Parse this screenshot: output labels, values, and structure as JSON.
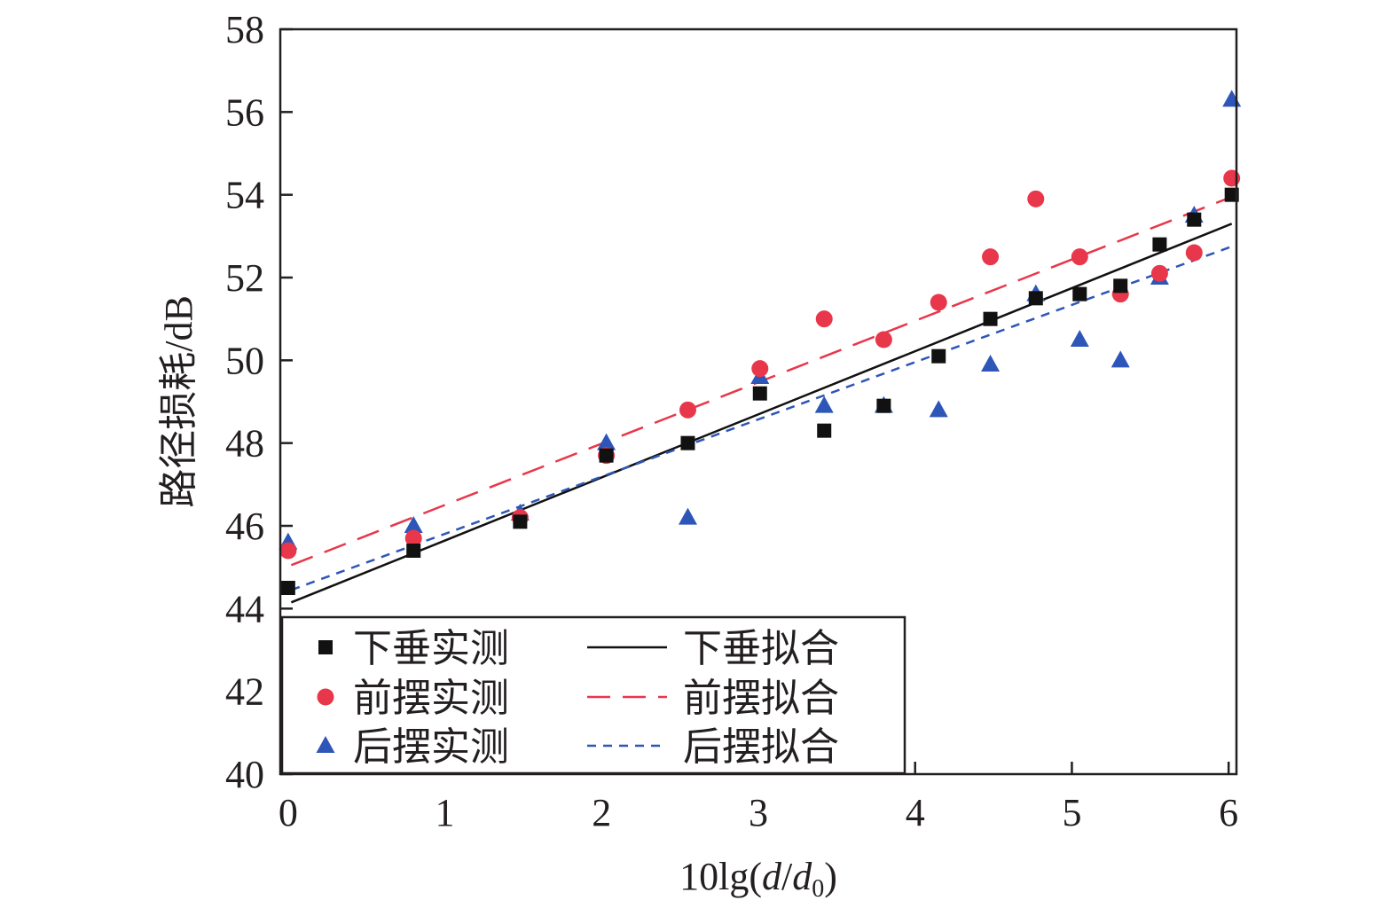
{
  "chart_data": {
    "type": "scatter",
    "xlabel": "10lg(d/d0)",
    "xlabel_parts": {
      "prefix": "10lg(",
      "var_d": "d",
      "slash": "/",
      "var_d0": "d",
      "sub0": "0",
      "suffix": ")"
    },
    "ylabel": "路径损耗/dB",
    "xlim": [
      -0.05,
      6.05
    ],
    "ylim": [
      40,
      58
    ],
    "xticks": [
      0,
      1,
      2,
      3,
      4,
      5,
      6
    ],
    "yticks": [
      40,
      42,
      44,
      46,
      48,
      50,
      52,
      54,
      56,
      58
    ],
    "grid": false,
    "legend_position": "bottom-left",
    "series": [
      {
        "name": "下垂实测",
        "kind": "scatter",
        "marker": "square",
        "color": "#111111",
        "points": [
          [
            0,
            44.5
          ],
          [
            0.8,
            45.4
          ],
          [
            1.48,
            46.1
          ],
          [
            2.03,
            47.7
          ],
          [
            2.55,
            48.0
          ],
          [
            3.01,
            49.2
          ],
          [
            3.42,
            48.3
          ],
          [
            3.8,
            48.9
          ],
          [
            4.15,
            50.1
          ],
          [
            4.48,
            51.0
          ],
          [
            4.77,
            51.5
          ],
          [
            5.05,
            51.6
          ],
          [
            5.31,
            51.8
          ],
          [
            5.56,
            52.8
          ],
          [
            5.78,
            53.4
          ],
          [
            6.02,
            54.0
          ]
        ]
      },
      {
        "name": "前摆实测",
        "kind": "scatter",
        "marker": "circle",
        "color": "#e8374b",
        "points": [
          [
            0,
            45.4
          ],
          [
            0.8,
            45.7
          ],
          [
            1.48,
            46.2
          ],
          [
            2.03,
            47.7
          ],
          [
            2.55,
            48.8
          ],
          [
            3.01,
            49.8
          ],
          [
            3.42,
            51.0
          ],
          [
            3.8,
            50.5
          ],
          [
            4.15,
            51.4
          ],
          [
            4.48,
            52.5
          ],
          [
            4.77,
            53.9
          ],
          [
            5.05,
            52.5
          ],
          [
            5.31,
            51.6
          ],
          [
            5.56,
            52.1
          ],
          [
            5.78,
            52.6
          ],
          [
            6.02,
            54.4
          ]
        ]
      },
      {
        "name": "后摆实测",
        "kind": "scatter",
        "marker": "triangle",
        "color": "#2e56b8",
        "points": [
          [
            0,
            45.6
          ],
          [
            0.8,
            46.0
          ],
          [
            1.48,
            46.3
          ],
          [
            2.03,
            48.0
          ],
          [
            2.55,
            46.2
          ],
          [
            3.01,
            49.6
          ],
          [
            3.42,
            48.9
          ],
          [
            3.8,
            48.9
          ],
          [
            4.15,
            48.8
          ],
          [
            4.48,
            49.9
          ],
          [
            4.77,
            51.6
          ],
          [
            5.05,
            50.5
          ],
          [
            5.31,
            50.0
          ],
          [
            5.56,
            52.0
          ],
          [
            5.78,
            53.5
          ],
          [
            6.02,
            56.3
          ]
        ]
      },
      {
        "name": "下垂拟合",
        "kind": "line",
        "dash": "solid",
        "color": "#111111",
        "x": [
          0.02,
          6.02
        ],
        "y": [
          44.15,
          53.3
        ]
      },
      {
        "name": "前摆拟合",
        "kind": "line",
        "dash": "long-dash",
        "color": "#e8374b",
        "x": [
          0.02,
          6.02
        ],
        "y": [
          45.05,
          53.95
        ]
      },
      {
        "name": "后摆拟合",
        "kind": "line",
        "dash": "short-dash",
        "color": "#2e56b8",
        "x": [
          0.02,
          6.02
        ],
        "y": [
          44.45,
          52.75
        ]
      }
    ]
  }
}
